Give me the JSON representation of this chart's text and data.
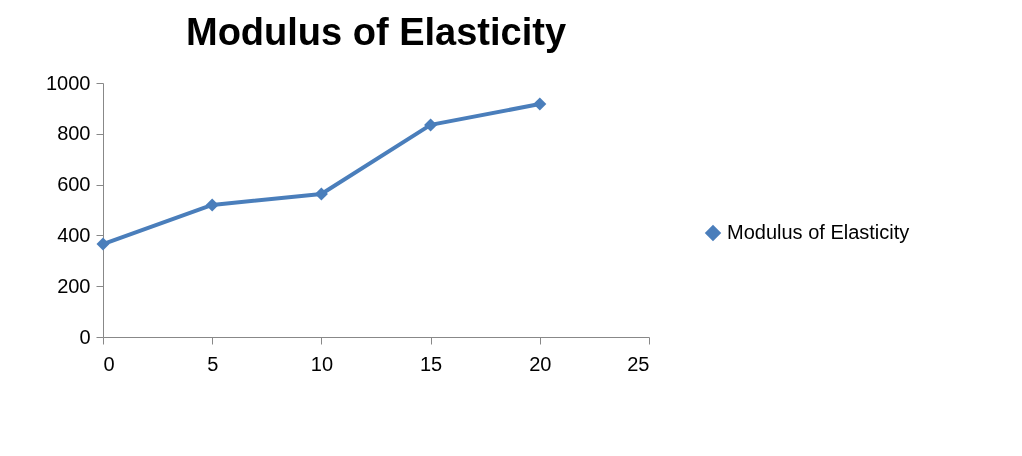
{
  "chart_data": {
    "type": "line",
    "title": "Modulus of Elasticity",
    "x": [
      0,
      5,
      10,
      15,
      20
    ],
    "series": [
      {
        "name": "Modulus of Elasticity",
        "color": "#4a7ebb",
        "values": [
          366,
          520,
          563,
          835,
          917
        ]
      }
    ],
    "xlim": [
      0,
      25
    ],
    "xticks": [
      0,
      5,
      10,
      15,
      20,
      25
    ],
    "ylim": [
      0,
      1000
    ],
    "yticks": [
      0,
      200,
      400,
      600,
      800,
      1000
    ],
    "grid": false,
    "legend": "right",
    "marker": "diamond",
    "line_style": "solid"
  }
}
